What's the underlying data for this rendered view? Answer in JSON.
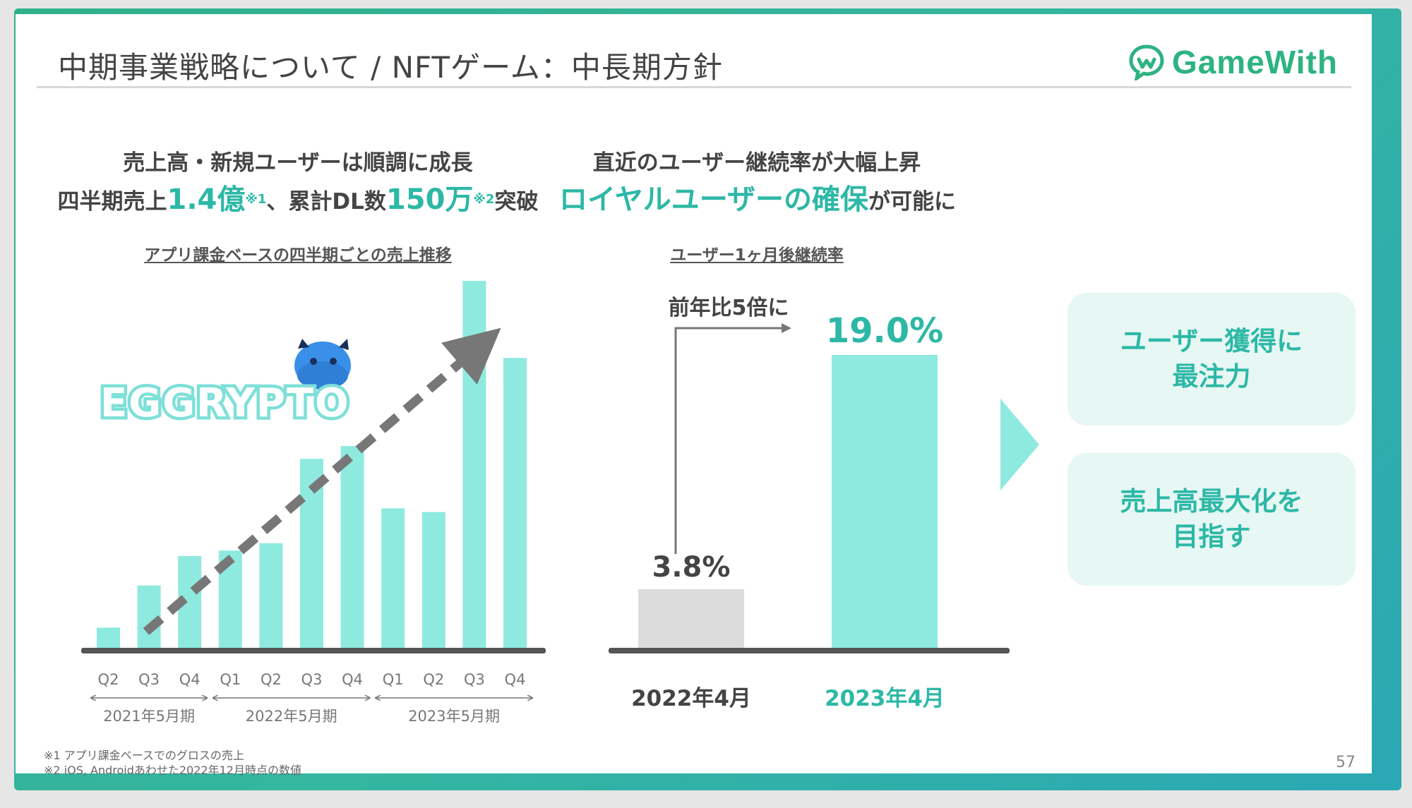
{
  "slide": {
    "title": "中期事業戦略について / NFTゲーム：中長期方針",
    "logo_text": "GameWith",
    "page_number": "57"
  },
  "left_section": {
    "headline_line1": "売上高・新規ユーザーは順調に成長",
    "headline_line2_prefix": "四半期売上",
    "sales_value": "1.4億",
    "note_mark1": "※1",
    "headline_line2_middle": "、累計DL数",
    "downloads_value": "150万",
    "note_mark2": "※2",
    "headline_line2_suffix": "突破",
    "chart_caption": "アプリ課金ベースの四半期ごとの売上推移",
    "game_logo_text": "EGGRYPTO"
  },
  "right_section": {
    "headline_line1": "直近のユーザー継続率が大幅上昇",
    "headline_line2_highlight": "ロイヤルユーザーの確保",
    "headline_line2_suffix": "が可能に",
    "chart_caption": "ユーザー1ヶ月後継続率",
    "growth_annotation": "前年比5倍に"
  },
  "callouts": [
    "ユーザー獲得に\n最注力",
    "売上高最大化を\n目指す"
  ],
  "footnotes": [
    "※1 アプリ課金ベースでのグロスの売上",
    "※2 iOS, Androidあわせた2022年12月時点の数値"
  ],
  "colors": {
    "teal": "#2db8a6",
    "bar_teal": "#8eeadf",
    "bar_gray": "#dcdcdc",
    "accent_green": "#2db382"
  },
  "chart_data": [
    {
      "type": "bar",
      "categories": [
        "Q2",
        "Q3",
        "Q4",
        "Q1",
        "Q2",
        "Q3",
        "Q4",
        "Q1",
        "Q2",
        "Q3",
        "Q4"
      ],
      "groups": [
        {
          "label": "2021年5月期",
          "count": 3
        },
        {
          "label": "2022年5月期",
          "count": 4
        },
        {
          "label": "2023年5月期",
          "count": 4
        }
      ],
      "values": [
        5.5,
        17,
        25,
        26.5,
        28.5,
        51.5,
        55,
        38,
        37,
        100,
        79
      ],
      "ylim": [
        0,
        100
      ],
      "trend_arrow": true
    },
    {
      "type": "bar",
      "categories": [
        "2022年4月",
        "2023年4月"
      ],
      "values": [
        3.8,
        19.0
      ],
      "value_labels": [
        "3.8%",
        "19.0%"
      ],
      "ylim": [
        0,
        19.0
      ]
    }
  ]
}
